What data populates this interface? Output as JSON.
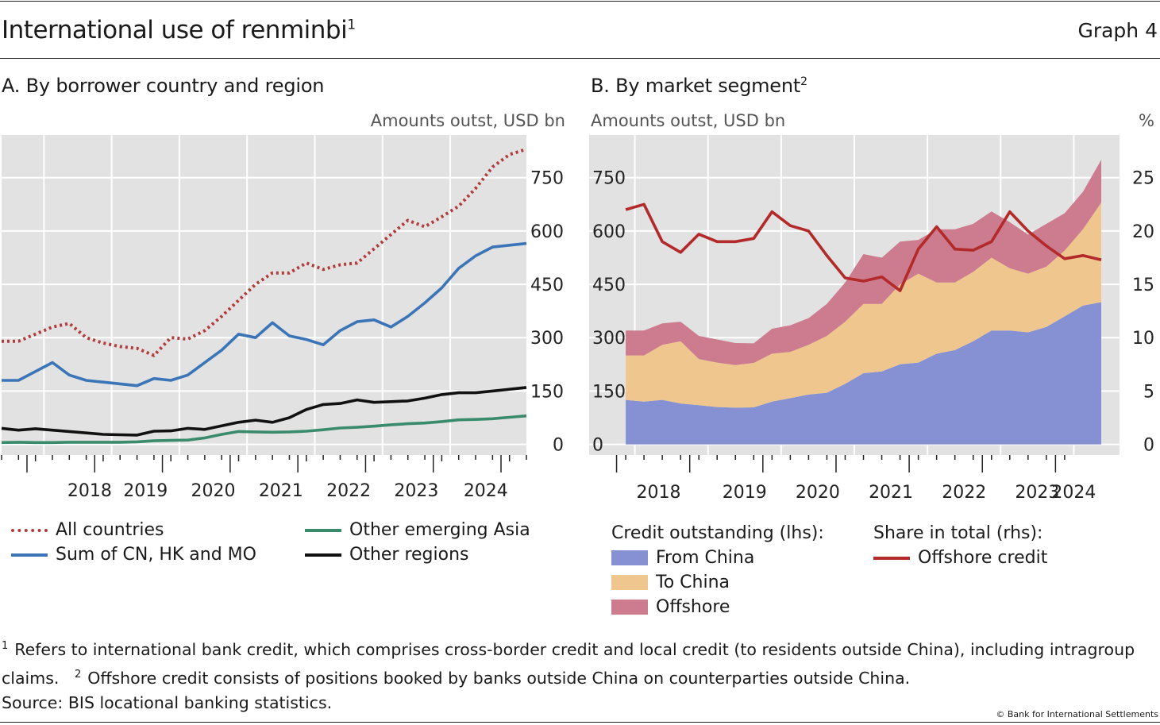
{
  "header": {
    "title": "International use of renminbi",
    "title_note": "1",
    "graph_label": "Graph 4"
  },
  "panel_a": {
    "title": "A. By borrower country and region",
    "unit": "Amounts outst, USD bn"
  },
  "panel_b": {
    "title": "B. By market segment",
    "title_note": "2",
    "unit_left": "Amounts outst, USD bn",
    "unit_right": "%"
  },
  "legend_a": {
    "all_countries": "All countries",
    "sum_cn_hk_mo": "Sum of CN, HK and MO",
    "other_em_asia": "Other emerging Asia",
    "other_regions": "Other regions"
  },
  "legend_b": {
    "lhs_heading": "Credit outstanding (lhs):",
    "from_china": "From China",
    "to_china": "To China",
    "offshore": "Offshore",
    "rhs_heading": "Share in total (rhs):",
    "offshore_credit": "Offshore credit"
  },
  "footnotes": {
    "note1_mark": "1",
    "note1": "Refers to international bank credit, which comprises cross-border credit and local credit (to residents outside China), including intragroup claims.",
    "note2_mark": "2",
    "note2": "Offshore credit consists of positions booked by banks outside China on counterparties outside China.",
    "source": "Source: BIS locational banking statistics.",
    "copyright": "© Bank for International Settlements"
  },
  "colors": {
    "all_countries": "#b23a3a",
    "sum_cn_hk_mo": "#3b75b8",
    "other_em_asia": "#3a8a6c",
    "other_regions": "#111111",
    "from_china": "#8591d3",
    "to_china": "#efc68e",
    "offshore": "#cd7b8e",
    "offshore_share": "#b22a2a",
    "plot_bg": "#e2e2e2",
    "grid": "#ffffff"
  },
  "chart_data": [
    {
      "type": "line",
      "panel": "A",
      "ylabel": "Amounts outst, USD bn",
      "ylim": [
        -30,
        870
      ],
      "yticks": [
        0,
        150,
        300,
        450,
        600,
        750
      ],
      "x_tick_labels": [
        "2018",
        "2019",
        "2020",
        "2021",
        "2022",
        "2023",
        "2024"
      ],
      "grid": true,
      "x": [
        "2017-Q2",
        "2017-Q3",
        "2017-Q4",
        "2018-Q1",
        "2018-Q2",
        "2018-Q3",
        "2018-Q4",
        "2019-Q1",
        "2019-Q2",
        "2019-Q3",
        "2019-Q4",
        "2020-Q1",
        "2020-Q2",
        "2020-Q3",
        "2020-Q4",
        "2021-Q1",
        "2021-Q2",
        "2021-Q3",
        "2021-Q4",
        "2022-Q1",
        "2022-Q2",
        "2022-Q3",
        "2022-Q4",
        "2023-Q1",
        "2023-Q2",
        "2023-Q3",
        "2023-Q4",
        "2024-Q1",
        "2024-Q2",
        "2024-Q3",
        "2024-Q4",
        "2025-Q1"
      ],
      "series": [
        {
          "name": "All countries",
          "style": "dotted",
          "values": [
            290,
            290,
            310,
            330,
            340,
            300,
            285,
            275,
            270,
            250,
            300,
            296,
            320,
            360,
            405,
            450,
            482,
            482,
            510,
            492,
            505,
            510,
            550,
            590,
            630,
            612,
            640,
            670,
            720,
            780,
            815,
            830
          ]
        },
        {
          "name": "Sum of CN, HK and MO",
          "style": "solid",
          "values": [
            180,
            180,
            205,
            230,
            195,
            180,
            175,
            170,
            165,
            185,
            180,
            195,
            230,
            265,
            310,
            300,
            342,
            305,
            295,
            280,
            320,
            345,
            350,
            330,
            360,
            398,
            440,
            495,
            530,
            555,
            560,
            565
          ]
        },
        {
          "name": "Other regions",
          "style": "solid",
          "values": [
            45,
            40,
            44,
            40,
            36,
            32,
            28,
            27,
            26,
            37,
            38,
            45,
            42,
            52,
            62,
            68,
            62,
            75,
            98,
            112,
            115,
            125,
            118,
            120,
            122,
            130,
            140,
            145,
            145,
            150,
            155,
            160
          ]
        },
        {
          "name": "Other emerging Asia",
          "style": "solid",
          "values": [
            5,
            6,
            5,
            5,
            6,
            6,
            6,
            6,
            7,
            10,
            11,
            12,
            18,
            28,
            36,
            35,
            34,
            35,
            37,
            41,
            46,
            48,
            51,
            55,
            58,
            60,
            64,
            69,
            70,
            72,
            76,
            80
          ]
        }
      ]
    },
    {
      "type": "area",
      "panel": "B",
      "stacked": true,
      "ylabel_left": "Amounts outst, USD bn",
      "ylabel_right": "%",
      "ylim_left": [
        -30,
        870
      ],
      "ylim_right": [
        -1,
        29
      ],
      "yticks_left": [
        0,
        150,
        300,
        450,
        600,
        750
      ],
      "yticks_right": [
        0,
        5,
        10,
        15,
        20,
        25
      ],
      "x_tick_labels": [
        "2018",
        "2019",
        "2020",
        "2021",
        "2022",
        "2023",
        "2024"
      ],
      "grid": true,
      "x": [
        "2017-Q4",
        "2018-Q1",
        "2018-Q2",
        "2018-Q3",
        "2018-Q4",
        "2019-Q1",
        "2019-Q2",
        "2019-Q3",
        "2019-Q4",
        "2020-Q1",
        "2020-Q2",
        "2020-Q3",
        "2020-Q4",
        "2021-Q1",
        "2021-Q2",
        "2021-Q3",
        "2021-Q4",
        "2022-Q1",
        "2022-Q2",
        "2022-Q3",
        "2022-Q4",
        "2023-Q1",
        "2023-Q2",
        "2023-Q3",
        "2023-Q4",
        "2024-Q1",
        "2024-Q2"
      ],
      "series": [
        {
          "name": "From China",
          "axis": "left",
          "values": [
            125,
            120,
            125,
            115,
            110,
            105,
            103,
            104,
            120,
            130,
            140,
            145,
            170,
            200,
            205,
            225,
            230,
            255,
            265,
            290,
            320,
            320,
            315,
            330,
            360,
            390,
            400
          ]
        },
        {
          "name": "To China",
          "axis": "left",
          "values": [
            125,
            130,
            155,
            175,
            130,
            125,
            120,
            125,
            135,
            130,
            140,
            160,
            175,
            195,
            190,
            225,
            250,
            200,
            190,
            195,
            205,
            175,
            165,
            170,
            185,
            215,
            280
          ]
        },
        {
          "name": "Offshore",
          "axis": "left",
          "values": [
            70,
            70,
            60,
            55,
            65,
            65,
            62,
            55,
            70,
            75,
            75,
            90,
            110,
            140,
            130,
            120,
            95,
            150,
            150,
            135,
            130,
            130,
            110,
            120,
            105,
            105,
            120
          ]
        },
        {
          "name": "Offshore credit",
          "axis": "right",
          "type": "line",
          "values": [
            22,
            22.5,
            19,
            18,
            19.7,
            19,
            19,
            19.3,
            21.8,
            20.5,
            20,
            17.7,
            15.6,
            15.3,
            15.7,
            14.4,
            18.3,
            20.4,
            18.3,
            18.2,
            19,
            21.8,
            20,
            18.6,
            17.4,
            17.7,
            17.3
          ]
        }
      ]
    }
  ]
}
